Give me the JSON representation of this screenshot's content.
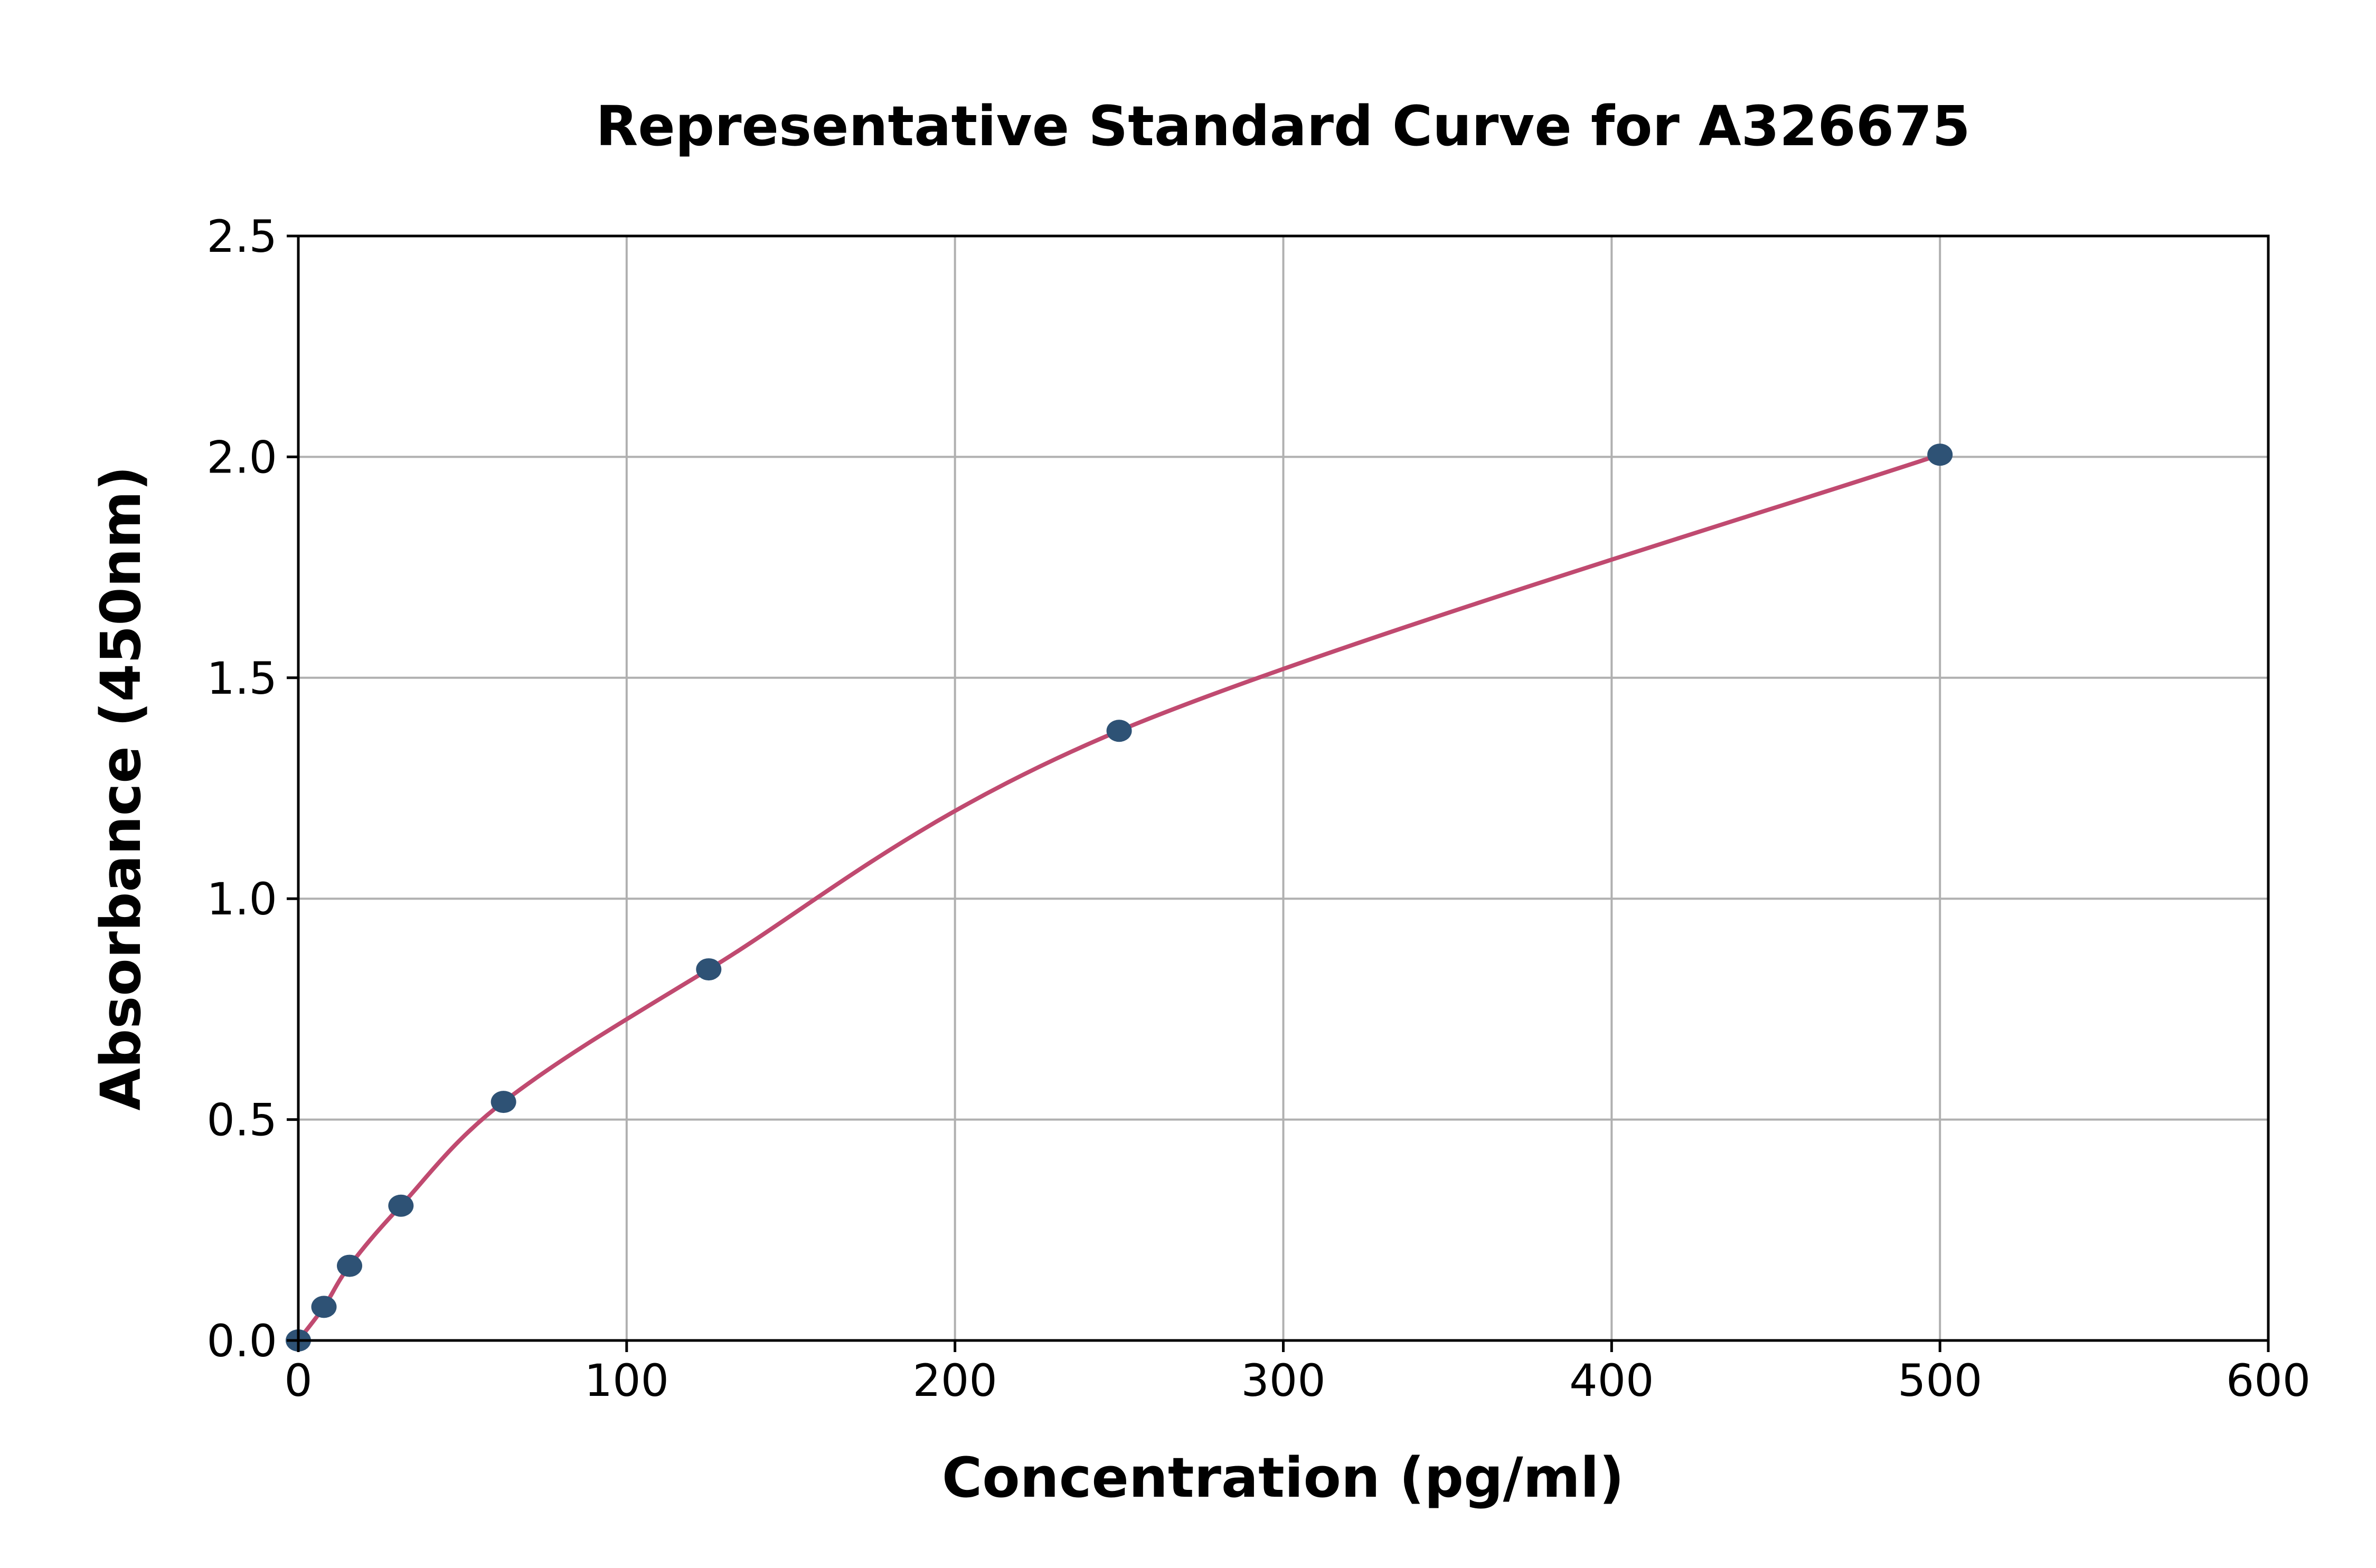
{
  "chart_data": {
    "type": "scatter",
    "title": "Representative Standard Curve for A326675",
    "xlabel": "Concentration (pg/ml)",
    "ylabel": "Absorbance (450nm)",
    "xlim": [
      0,
      600
    ],
    "ylim": [
      0,
      2.5
    ],
    "xticks": [
      0,
      100,
      200,
      300,
      400,
      500,
      600
    ],
    "yticks": [
      0.0,
      0.5,
      1.0,
      1.5,
      2.0,
      2.5
    ],
    "xtick_labels": [
      "0",
      "100",
      "200",
      "300",
      "400",
      "500",
      "600"
    ],
    "ytick_labels": [
      "0.0",
      "0.5",
      "1.0",
      "1.5",
      "2.0",
      "2.5"
    ],
    "grid": true,
    "series": [
      {
        "kind": "points",
        "color": "#2e5275",
        "x": [
          0,
          7.8,
          15.6,
          31.25,
          62.5,
          125,
          250,
          500
        ],
        "y": [
          0.0,
          0.076,
          0.169,
          0.305,
          0.54,
          0.84,
          1.38,
          2.005
        ]
      },
      {
        "kind": "fit-curve",
        "color": "#c04a70"
      }
    ]
  }
}
